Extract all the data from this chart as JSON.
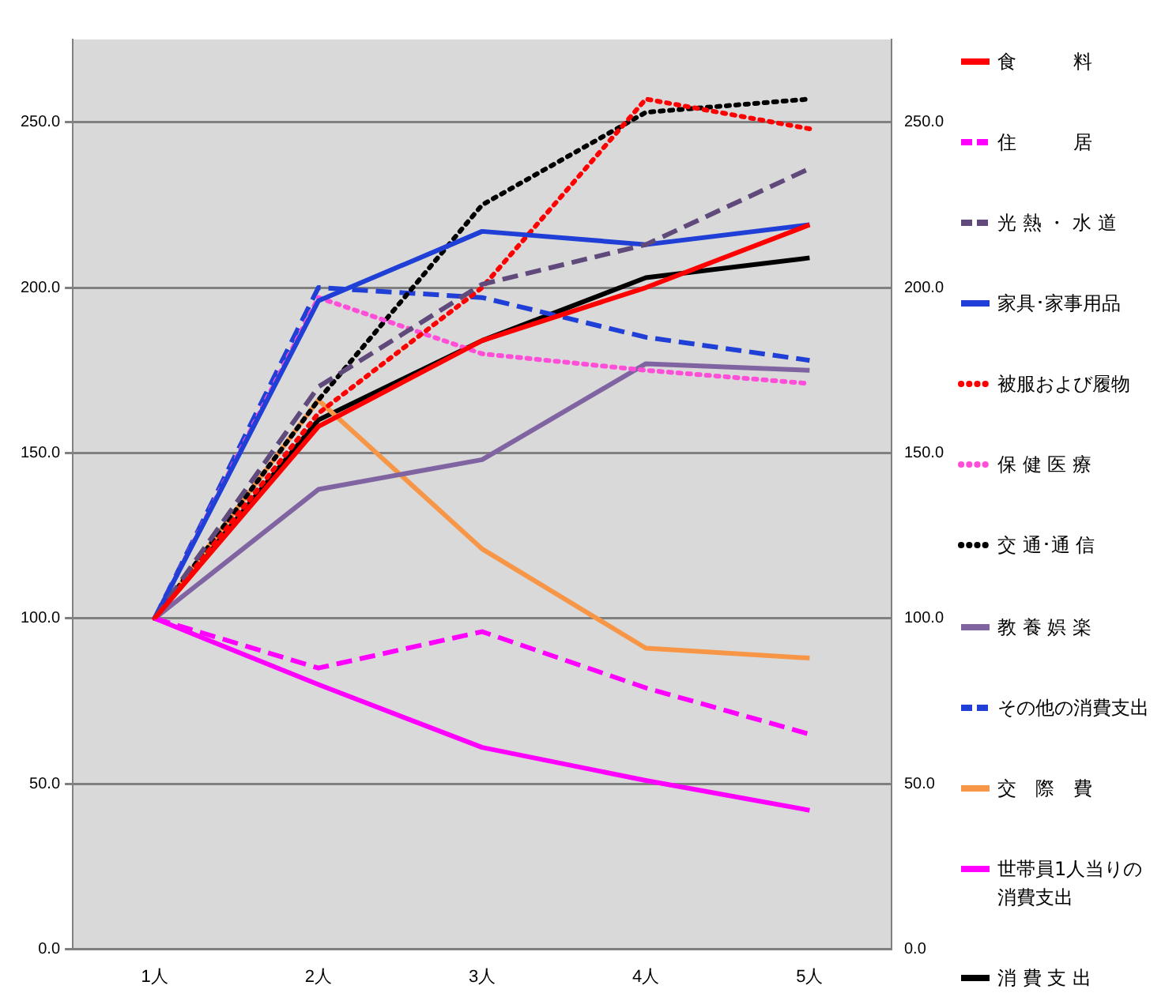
{
  "chart_data": {
    "type": "line",
    "categories": [
      "1人",
      "2人",
      "3人",
      "4人",
      "5人"
    ],
    "ylim": [
      0,
      275
    ],
    "yticks": [
      {
        "value": 0,
        "label": "0.0"
      },
      {
        "value": 50,
        "label": "50.0"
      },
      {
        "value": 100,
        "label": "100.0"
      },
      {
        "value": 150,
        "label": "150.0"
      },
      {
        "value": 200,
        "label": "200.0"
      },
      {
        "value": 250,
        "label": "250.0"
      }
    ],
    "y2lim": [
      0,
      275
    ],
    "y2ticks": [
      {
        "value": 0,
        "label": "0.0"
      },
      {
        "value": 50,
        "label": "50.0"
      },
      {
        "value": 100,
        "label": "100.0"
      },
      {
        "value": 150,
        "label": "150.0"
      },
      {
        "value": 200,
        "label": "200.0"
      },
      {
        "value": 250,
        "label": "250.0"
      }
    ],
    "grid": "y",
    "legend": "right",
    "marker": "none",
    "series": [
      {
        "name": "食　　　料",
        "color": "#ff0000",
        "line_style": "solid",
        "values": [
          100,
          158,
          184,
          200,
          219
        ]
      },
      {
        "name": "住　　　居",
        "color": "#ff00ff",
        "line_style": "dashed",
        "values": [
          100,
          85,
          96,
          79,
          65
        ]
      },
      {
        "name": "光 熱 ・ 水 道",
        "color": "#604a7b",
        "line_style": "dashed",
        "values": [
          100,
          170,
          201,
          213,
          236
        ]
      },
      {
        "name": "家具･家事用品",
        "color": "#1f3fd6",
        "line_style": "solid",
        "values": [
          100,
          196,
          217,
          213,
          219
        ]
      },
      {
        "name": "被服および履物",
        "color": "#ff0000",
        "line_style": "dotted",
        "values": [
          100,
          162,
          200,
          257,
          248
        ]
      },
      {
        "name": "保 健 医 療",
        "color": "#ff4fd8",
        "line_style": "dotted",
        "values": [
          100,
          197,
          180,
          175,
          171
        ]
      },
      {
        "name": "交 通･通 信",
        "color": "#000000",
        "line_style": "dotted",
        "values": [
          100,
          166,
          225,
          253,
          257
        ]
      },
      {
        "name": "教 養 娯 楽",
        "color": "#8064a2",
        "line_style": "solid",
        "values": [
          100,
          139,
          148,
          177,
          175
        ]
      },
      {
        "name": "その他の消費支出",
        "color": "#1f3fd6",
        "line_style": "dashed",
        "values": [
          100,
          200,
          197,
          185,
          178
        ]
      },
      {
        "name": "交　際　費",
        "color": "#f79646",
        "line_style": "solid",
        "values": [
          100,
          166,
          121,
          91,
          88
        ]
      },
      {
        "name": "世帯員1人当りの消費支出",
        "color": "#ff00ff",
        "line_style": "solid",
        "values": [
          100,
          80,
          61,
          51,
          42
        ]
      },
      {
        "name": "消 費 支 出",
        "color": "#000000",
        "line_style": "solid",
        "values": [
          100,
          160,
          184,
          203,
          209
        ]
      }
    ]
  }
}
